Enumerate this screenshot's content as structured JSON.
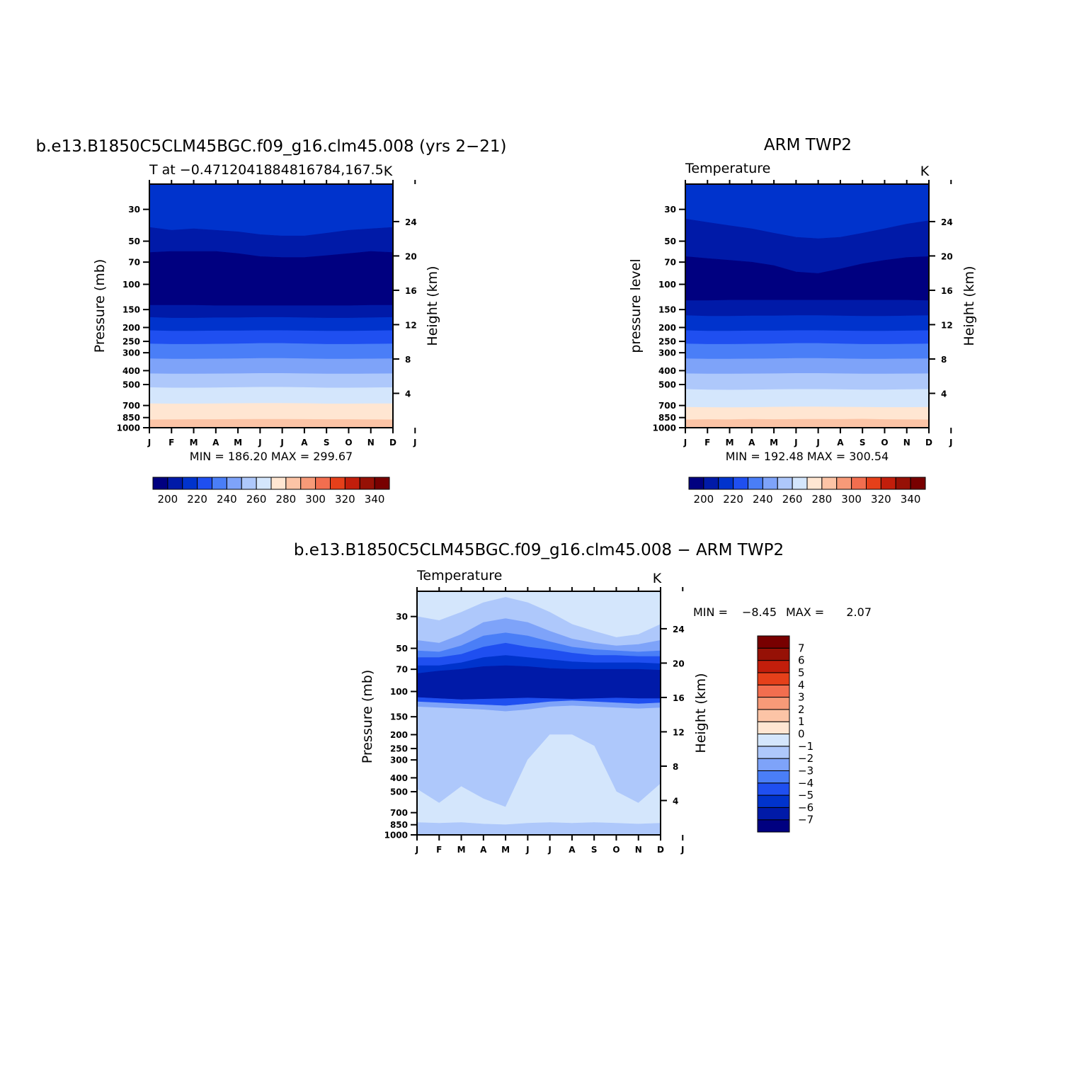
{
  "palette": {
    "temperature": [
      "#000080",
      "#001aa8",
      "#0033cc",
      "#1f4ff0",
      "#4a7ef7",
      "#7ea3f9",
      "#aec8fb",
      "#d4e6fc",
      "#ffe6d2",
      "#fcc4a6",
      "#f79a78",
      "#f26e4f",
      "#e5401a",
      "#c21e0b",
      "#961106",
      "#780000"
    ],
    "difference": [
      "#000080",
      "#001aa8",
      "#0033cc",
      "#1f4ff0",
      "#4a7ef7",
      "#7ea3f9",
      "#aec8fb",
      "#d4e6fc",
      "#ffe6d2",
      "#fcc4a6",
      "#f79a78",
      "#f26e4f",
      "#e5401a",
      "#c21e0b",
      "#961106",
      "#780000"
    ]
  },
  "chart_data": [
    {
      "id": "model",
      "type": "heatmap",
      "title": "b.e13.B1850C5CLM45BGC.f09_g16.clm45.008 (yrs 2−21)",
      "subtitle": "T at −0.4712041884816784,167.5",
      "units": "K",
      "ylabel": "Pressure (mb)",
      "ylabel_right": "Height (km)",
      "x_ticks": [
        "J",
        "F",
        "M",
        "A",
        "M",
        "J",
        "J",
        "A",
        "S",
        "O",
        "N",
        "D",
        "J"
      ],
      "y_ticks": [
        30,
        50,
        70,
        100,
        150,
        200,
        250,
        300,
        400,
        500,
        700,
        850,
        1000
      ],
      "y_ticks_right": [
        4,
        8,
        12,
        16,
        20,
        24
      ],
      "ylim": [
        20,
        1000
      ],
      "y_scale": "log, inverted",
      "stats": "MIN = 186.20 MAX = 299.67",
      "levels": [
        200,
        210,
        220,
        230,
        240,
        250,
        260,
        270,
        280,
        290,
        300,
        310,
        320,
        330,
        340
      ],
      "colorbar_labels": [
        "200",
        "220",
        "240",
        "260",
        "280",
        "300",
        "320",
        "340"
      ],
      "band_bounds_hPa": [
        [
          19,
          40,
          42,
          41,
          42,
          43,
          45,
          46,
          46,
          44,
          42,
          41,
          40,
          40
        ],
        [
          40,
          60,
          59,
          59,
          59,
          61,
          64,
          65,
          65,
          63,
          61,
          59,
          60,
          60
        ],
        [
          60,
          140,
          140,
          140,
          141,
          141,
          141,
          141,
          141,
          141,
          141,
          140,
          140,
          140
        ],
        [
          140,
          170,
          172,
          172,
          171,
          171,
          170,
          170,
          171,
          172,
          172,
          171,
          170,
          170
        ],
        [
          170,
          210,
          212,
          212,
          211,
          211,
          210,
          210,
          211,
          212,
          212,
          211,
          210,
          210
        ],
        [
          210,
          260,
          262,
          262,
          261,
          260,
          258,
          258,
          260,
          262,
          262,
          261,
          260,
          260
        ],
        [
          260,
          330,
          332,
          332,
          331,
          330,
          328,
          328,
          330,
          332,
          332,
          331,
          330,
          330
        ],
        [
          330,
          420,
          422,
          422,
          421,
          420,
          418,
          418,
          420,
          422,
          422,
          421,
          420,
          420
        ],
        [
          420,
          525,
          528,
          528,
          526,
          524,
          522,
          522,
          524,
          528,
          528,
          526,
          525,
          525
        ],
        [
          525,
          680,
          682,
          682,
          680,
          678,
          676,
          676,
          678,
          682,
          682,
          680,
          680,
          680
        ],
        [
          680,
          880,
          878,
          876,
          876,
          874,
          872,
          872,
          874,
          876,
          876,
          878,
          880,
          880
        ],
        [
          880,
          1000,
          1000,
          1000,
          1000,
          1000,
          1000,
          1000,
          1000,
          1000,
          1000,
          1000,
          1000,
          1000
        ]
      ],
      "band_colors": [
        2,
        1,
        0,
        1,
        2,
        3,
        4,
        5,
        6,
        7,
        8,
        9
      ]
    },
    {
      "id": "obs",
      "type": "heatmap",
      "title": "ARM TWP2",
      "subtitle": "Temperature",
      "units": "K",
      "ylabel": "pressure level",
      "ylabel_right": "Height (km)",
      "x_ticks": [
        "J",
        "F",
        "M",
        "A",
        "M",
        "J",
        "J",
        "A",
        "S",
        "O",
        "N",
        "D",
        "J"
      ],
      "y_ticks": [
        30,
        50,
        70,
        100,
        150,
        200,
        250,
        300,
        400,
        500,
        700,
        850,
        1000
      ],
      "y_ticks_right": [
        4,
        8,
        12,
        16,
        20,
        24
      ],
      "ylim": [
        20,
        1000
      ],
      "y_scale": "log, inverted",
      "stats": "MIN = 192.48 MAX = 300.54",
      "levels": [
        200,
        210,
        220,
        230,
        240,
        250,
        260,
        270,
        280,
        290,
        300,
        310,
        320,
        330,
        340
      ],
      "colorbar_labels": [
        "200",
        "220",
        "240",
        "260",
        "280",
        "300",
        "320",
        "340"
      ],
      "band_bounds_hPa": [
        [
          19,
          35,
          37,
          39,
          41,
          44,
          47,
          48,
          47,
          44,
          41,
          38,
          36,
          35
        ],
        [
          35,
          64,
          66,
          68,
          70,
          74,
          82,
          84,
          78,
          72,
          68,
          65,
          64,
          64
        ],
        [
          64,
          130,
          130,
          129,
          129,
          129,
          129,
          129,
          129,
          129,
          129,
          129,
          130,
          130
        ],
        [
          130,
          165,
          167,
          167,
          166,
          166,
          165,
          165,
          166,
          167,
          167,
          166,
          165,
          165
        ],
        [
          165,
          210,
          212,
          212,
          211,
          211,
          210,
          210,
          211,
          212,
          212,
          211,
          210,
          210
        ],
        [
          210,
          260,
          262,
          262,
          261,
          260,
          258,
          258,
          260,
          262,
          262,
          261,
          260,
          260
        ],
        [
          260,
          330,
          332,
          332,
          331,
          330,
          328,
          328,
          330,
          332,
          332,
          331,
          330,
          330
        ],
        [
          330,
          420,
          422,
          422,
          421,
          420,
          418,
          418,
          420,
          422,
          422,
          421,
          420,
          420
        ],
        [
          420,
          540,
          544,
          546,
          544,
          542,
          540,
          540,
          542,
          544,
          544,
          542,
          540,
          540
        ],
        [
          540,
          720,
          722,
          724,
          722,
          718,
          716,
          716,
          718,
          720,
          722,
          722,
          720,
          720
        ],
        [
          720,
          880,
          876,
          878,
          872,
          876,
          874,
          872,
          874,
          870,
          876,
          878,
          880,
          880
        ],
        [
          880,
          1000,
          1000,
          1000,
          1000,
          1000,
          1000,
          1000,
          1000,
          1000,
          1000,
          1000,
          1000,
          1000
        ]
      ],
      "band_colors": [
        2,
        1,
        0,
        1,
        2,
        3,
        4,
        5,
        6,
        7,
        8,
        9
      ]
    },
    {
      "id": "diff",
      "type": "heatmap",
      "title": "b.e13.B1850C5CLM45BGC.f09_g16.clm45.008 − ARM TWP2",
      "subtitle": "Temperature",
      "units": "K",
      "ylabel": "Pressure (mb)",
      "ylabel_right": "Height (km)",
      "x_ticks": [
        "J",
        "F",
        "M",
        "A",
        "M",
        "J",
        "J",
        "A",
        "S",
        "O",
        "N",
        "D",
        "J"
      ],
      "y_ticks": [
        30,
        50,
        70,
        100,
        150,
        200,
        250,
        300,
        400,
        500,
        700,
        850,
        1000
      ],
      "y_ticks_right": [
        4,
        8,
        12,
        16,
        20,
        24
      ],
      "ylim": [
        20,
        1000
      ],
      "y_scale": "log, inverted",
      "stats_min_label": "MIN =",
      "stats_min": "−8.45",
      "stats_max_label": "MAX =",
      "stats_max": "2.07",
      "levels": [
        -7,
        -6,
        -5,
        -4,
        -3,
        -2,
        -1,
        0,
        1,
        2,
        3,
        4,
        5,
        6,
        7
      ],
      "colorbar_labels": [
        "−7",
        "−6",
        "−5",
        "−4",
        "−3",
        "−2",
        "−1",
        "0",
        "1",
        "2",
        "3",
        "4",
        "5",
        "6",
        "7"
      ],
      "band_bounds_hPa": [
        [
          19,
          30,
          32,
          28,
          24,
          22,
          24,
          28,
          34,
          38,
          42,
          40,
          34,
          30
        ],
        [
          30,
          44,
          46,
          40,
          33,
          31,
          33,
          38,
          43,
          46,
          48,
          47,
          44,
          44
        ],
        [
          44,
          52,
          53,
          48,
          41,
          39,
          41,
          45,
          49,
          51,
          52,
          53,
          52,
          52
        ],
        [
          52,
          58,
          58,
          55,
          49,
          46,
          49,
          51,
          54,
          56,
          56,
          57,
          57,
          58
        ],
        [
          58,
          66,
          66,
          63,
          58,
          56,
          58,
          60,
          62,
          63,
          63,
          63,
          64,
          66
        ],
        [
          66,
          75,
          72,
          70,
          67,
          66,
          67,
          69,
          70,
          70,
          70,
          70,
          71,
          72
        ],
        [
          72,
          110,
          112,
          114,
          113,
          112,
          111,
          112,
          113,
          112,
          111,
          112,
          112,
          110
        ],
        [
          110,
          118,
          120,
          122,
          124,
          126,
          122,
          118,
          116,
          118,
          120,
          122,
          120,
          118
        ],
        [
          118,
          128,
          130,
          132,
          134,
          138,
          134,
          128,
          126,
          128,
          130,
          132,
          130,
          128
        ],
        [
          128,
          480,
          600,
          460,
          560,
          640,
          300,
          200,
          200,
          240,
          500,
          600,
          440,
          380
        ],
        [
          380,
          820,
          830,
          820,
          840,
          850,
          830,
          820,
          830,
          820,
          830,
          840,
          830,
          820
        ],
        [
          820,
          1000,
          1000,
          1000,
          1000,
          1000,
          1000,
          1000,
          1000,
          1000,
          1000,
          1000,
          1000,
          1000
        ]
      ],
      "band_colors": [
        7,
        6,
        5,
        4,
        3,
        2,
        1,
        3,
        5,
        6,
        7,
        6
      ]
    }
  ]
}
